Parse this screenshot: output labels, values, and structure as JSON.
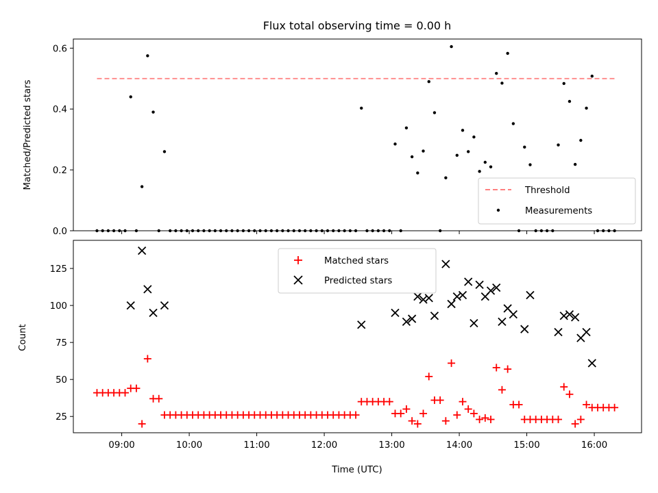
{
  "chart_data": [
    {
      "type": "scatter",
      "title": "Flux total observing time = 0.00 h",
      "xlabel": "",
      "ylabel": "Matched/Predicted stars",
      "xlim": [
        "08:17",
        "16:42"
      ],
      "ylim": [
        0,
        0.63
      ],
      "yticks": [
        0.0,
        0.2,
        0.4,
        0.6
      ],
      "ytick_labels": [
        "0.0",
        "0.2",
        "0.4",
        "0.6"
      ],
      "grid": false,
      "legend_position": "lower-right",
      "threshold": {
        "name": "Threshold",
        "value": 0.5,
        "x_start": "08:38",
        "x_end": "16:18",
        "color": "#ff7f7f"
      },
      "series": [
        {
          "name": "Measurements",
          "color": "#000000",
          "points": [
            [
              "08:38",
              0
            ],
            [
              "08:43",
              0
            ],
            [
              "08:48",
              0
            ],
            [
              "08:53",
              0
            ],
            [
              "08:58",
              0
            ],
            [
              "09:03",
              0
            ],
            [
              "09:08",
              0.44
            ],
            [
              "09:13",
              0
            ],
            [
              "09:18",
              0.145
            ],
            [
              "09:23",
              0.575
            ],
            [
              "09:28",
              0.39
            ],
            [
              "09:33",
              0
            ],
            [
              "09:38",
              0.26
            ],
            [
              "09:43",
              0
            ],
            [
              "09:48",
              0
            ],
            [
              "09:53",
              0
            ],
            [
              "09:58",
              0
            ],
            [
              "10:03",
              0
            ],
            [
              "10:08",
              0
            ],
            [
              "10:13",
              0
            ],
            [
              "10:18",
              0
            ],
            [
              "10:23",
              0
            ],
            [
              "10:28",
              0
            ],
            [
              "10:33",
              0
            ],
            [
              "10:38",
              0
            ],
            [
              "10:43",
              0
            ],
            [
              "10:48",
              0
            ],
            [
              "10:53",
              0
            ],
            [
              "10:58",
              0
            ],
            [
              "11:03",
              0
            ],
            [
              "11:08",
              0
            ],
            [
              "11:13",
              0
            ],
            [
              "11:18",
              0
            ],
            [
              "11:23",
              0
            ],
            [
              "11:28",
              0
            ],
            [
              "11:33",
              0
            ],
            [
              "11:38",
              0
            ],
            [
              "11:43",
              0
            ],
            [
              "11:48",
              0
            ],
            [
              "11:53",
              0
            ],
            [
              "11:58",
              0
            ],
            [
              "12:03",
              0
            ],
            [
              "12:08",
              0
            ],
            [
              "12:13",
              0
            ],
            [
              "12:18",
              0
            ],
            [
              "12:23",
              0
            ],
            [
              "12:28",
              0
            ],
            [
              "12:33",
              0.403
            ],
            [
              "12:38",
              0
            ],
            [
              "12:43",
              0
            ],
            [
              "12:48",
              0
            ],
            [
              "12:53",
              0
            ],
            [
              "12:58",
              0
            ],
            [
              "13:03",
              0.285
            ],
            [
              "13:08",
              0
            ],
            [
              "13:13",
              0.338
            ],
            [
              "13:18",
              0.243
            ],
            [
              "13:23",
              0.19
            ],
            [
              "13:28",
              0.262
            ],
            [
              "13:33",
              0.49
            ],
            [
              "13:38",
              0.388
            ],
            [
              "13:43",
              0
            ],
            [
              "13:48",
              0.174
            ],
            [
              "13:53",
              0.605
            ],
            [
              "13:58",
              0.248
            ],
            [
              "14:03",
              0.33
            ],
            [
              "14:08",
              0.26
            ],
            [
              "14:13",
              0.308
            ],
            [
              "14:18",
              0.195
            ],
            [
              "14:23",
              0.225
            ],
            [
              "14:28",
              0.21
            ],
            [
              "14:33",
              0.517
            ],
            [
              "14:38",
              0.485
            ],
            [
              "14:43",
              0.583
            ],
            [
              "14:48",
              0.352
            ],
            [
              "14:53",
              0
            ],
            [
              "14:58",
              0.275
            ],
            [
              "15:03",
              0.217
            ],
            [
              "15:08",
              0
            ],
            [
              "15:13",
              0
            ],
            [
              "15:18",
              0
            ],
            [
              "15:23",
              0
            ],
            [
              "15:28",
              0.282
            ],
            [
              "15:33",
              0.484
            ],
            [
              "15:38",
              0.425
            ],
            [
              "15:43",
              0.218
            ],
            [
              "15:48",
              0.297
            ],
            [
              "15:53",
              0.403
            ],
            [
              "15:58",
              0.508
            ],
            [
              "16:03",
              0
            ],
            [
              "16:08",
              0
            ],
            [
              "16:13",
              0
            ],
            [
              "16:18",
              0
            ]
          ]
        }
      ]
    },
    {
      "type": "scatter",
      "title": "",
      "xlabel": "Time (UTC)",
      "ylabel": "Count",
      "xlim": [
        "08:17",
        "16:42"
      ],
      "ylim": [
        14,
        144
      ],
      "yticks": [
        25,
        50,
        75,
        100,
        125
      ],
      "ytick_labels": [
        "25",
        "50",
        "75",
        "100",
        "125"
      ],
      "xticks": [
        "09:00",
        "10:00",
        "11:00",
        "12:00",
        "13:00",
        "14:00",
        "15:00",
        "16:00"
      ],
      "xtick_labels": [
        "09:00",
        "10:00",
        "11:00",
        "12:00",
        "13:00",
        "14:00",
        "15:00",
        "16:00"
      ],
      "grid": false,
      "legend_position": "upper-center",
      "series": [
        {
          "name": "Matched stars",
          "marker": "+",
          "color": "#ff0000",
          "points": [
            [
              "08:38",
              41
            ],
            [
              "08:43",
              41
            ],
            [
              "08:48",
              41
            ],
            [
              "08:53",
              41
            ],
            [
              "08:58",
              41
            ],
            [
              "09:03",
              41
            ],
            [
              "09:08",
              44
            ],
            [
              "09:13",
              44
            ],
            [
              "09:18",
              20
            ],
            [
              "09:23",
              64
            ],
            [
              "09:28",
              37
            ],
            [
              "09:33",
              37
            ],
            [
              "09:38",
              26
            ],
            [
              "09:43",
              26
            ],
            [
              "09:48",
              26
            ],
            [
              "09:53",
              26
            ],
            [
              "09:58",
              26
            ],
            [
              "10:03",
              26
            ],
            [
              "10:08",
              26
            ],
            [
              "10:13",
              26
            ],
            [
              "10:18",
              26
            ],
            [
              "10:23",
              26
            ],
            [
              "10:28",
              26
            ],
            [
              "10:33",
              26
            ],
            [
              "10:38",
              26
            ],
            [
              "10:43",
              26
            ],
            [
              "10:48",
              26
            ],
            [
              "10:53",
              26
            ],
            [
              "10:58",
              26
            ],
            [
              "11:03",
              26
            ],
            [
              "11:08",
              26
            ],
            [
              "11:13",
              26
            ],
            [
              "11:18",
              26
            ],
            [
              "11:23",
              26
            ],
            [
              "11:28",
              26
            ],
            [
              "11:33",
              26
            ],
            [
              "11:38",
              26
            ],
            [
              "11:43",
              26
            ],
            [
              "11:48",
              26
            ],
            [
              "11:53",
              26
            ],
            [
              "11:58",
              26
            ],
            [
              "12:03",
              26
            ],
            [
              "12:08",
              26
            ],
            [
              "12:13",
              26
            ],
            [
              "12:18",
              26
            ],
            [
              "12:23",
              26
            ],
            [
              "12:28",
              26
            ],
            [
              "12:33",
              35
            ],
            [
              "12:38",
              35
            ],
            [
              "12:43",
              35
            ],
            [
              "12:48",
              35
            ],
            [
              "12:53",
              35
            ],
            [
              "12:58",
              35
            ],
            [
              "13:03",
              27
            ],
            [
              "13:08",
              27
            ],
            [
              "13:13",
              30
            ],
            [
              "13:18",
              22
            ],
            [
              "13:23",
              20
            ],
            [
              "13:28",
              27
            ],
            [
              "13:33",
              52
            ],
            [
              "13:38",
              36
            ],
            [
              "13:43",
              36
            ],
            [
              "13:48",
              22
            ],
            [
              "13:53",
              61
            ],
            [
              "13:58",
              26
            ],
            [
              "14:03",
              35
            ],
            [
              "14:08",
              30
            ],
            [
              "14:13",
              27
            ],
            [
              "14:18",
              23
            ],
            [
              "14:23",
              24
            ],
            [
              "14:28",
              23
            ],
            [
              "14:33",
              58
            ],
            [
              "14:38",
              43
            ],
            [
              "14:43",
              57
            ],
            [
              "14:48",
              33
            ],
            [
              "14:53",
              33
            ],
            [
              "14:58",
              23
            ],
            [
              "15:03",
              23
            ],
            [
              "15:08",
              23
            ],
            [
              "15:13",
              23
            ],
            [
              "15:18",
              23
            ],
            [
              "15:23",
              23
            ],
            [
              "15:28",
              23
            ],
            [
              "15:33",
              45
            ],
            [
              "15:38",
              40
            ],
            [
              "15:43",
              20
            ],
            [
              "15:48",
              23
            ],
            [
              "15:53",
              33
            ],
            [
              "15:58",
              31
            ],
            [
              "16:03",
              31
            ],
            [
              "16:08",
              31
            ],
            [
              "16:13",
              31
            ],
            [
              "16:18",
              31
            ]
          ]
        },
        {
          "name": "Predicted stars",
          "marker": "x",
          "color": "#000000",
          "points": [
            [
              "09:08",
              100
            ],
            [
              "09:18",
              137
            ],
            [
              "09:23",
              111
            ],
            [
              "09:28",
              95
            ],
            [
              "09:38",
              100
            ],
            [
              "12:33",
              87
            ],
            [
              "13:03",
              95
            ],
            [
              "13:13",
              89
            ],
            [
              "13:18",
              91
            ],
            [
              "13:23",
              106
            ],
            [
              "13:28",
              104
            ],
            [
              "13:33",
              105
            ],
            [
              "13:38",
              93
            ],
            [
              "13:48",
              128
            ],
            [
              "13:53",
              101
            ],
            [
              "13:58",
              106
            ],
            [
              "14:03",
              107
            ],
            [
              "14:08",
              116
            ],
            [
              "14:13",
              88
            ],
            [
              "14:18",
              114
            ],
            [
              "14:23",
              106
            ],
            [
              "14:28",
              110
            ],
            [
              "14:33",
              112
            ],
            [
              "14:38",
              89
            ],
            [
              "14:43",
              98
            ],
            [
              "14:48",
              94
            ],
            [
              "14:58",
              84
            ],
            [
              "15:03",
              107
            ],
            [
              "15:28",
              82
            ],
            [
              "15:33",
              93
            ],
            [
              "15:38",
              94
            ],
            [
              "15:43",
              92
            ],
            [
              "15:48",
              78
            ],
            [
              "15:53",
              82
            ],
            [
              "15:58",
              61
            ]
          ]
        }
      ]
    }
  ]
}
